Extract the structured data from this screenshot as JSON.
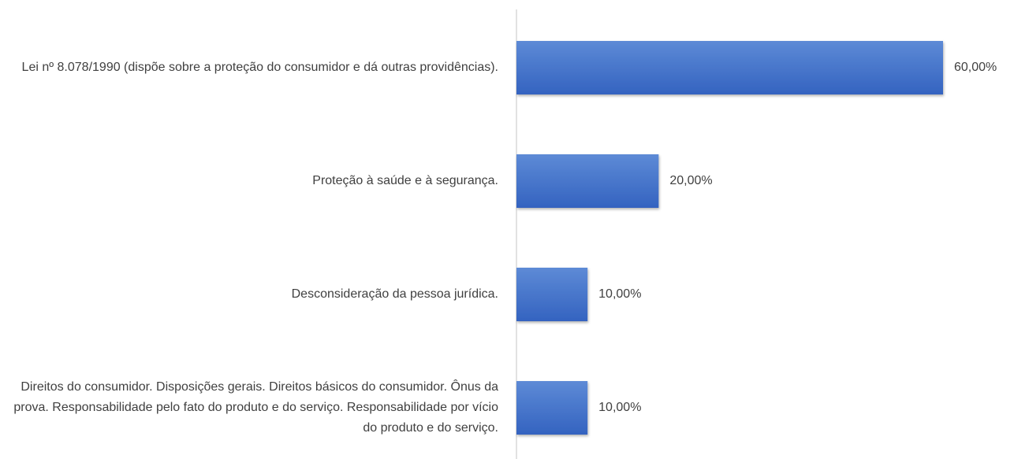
{
  "chart_data": {
    "type": "bar",
    "orientation": "horizontal",
    "categories": [
      "Lei nº 8.078/1990 (dispõe sobre a proteção do consumidor e dá outras providências).",
      "Proteção à saúde e à segurança.",
      "Desconsideração da pessoa jurídica.",
      "Direitos do consumidor. Disposições gerais. Direitos básicos do consumidor. Ônus da prova. Responsabilidade pelo fato do produto e do serviço. Responsabilidade por vício do produto e do serviço."
    ],
    "values": [
      60,
      20,
      10,
      10
    ],
    "value_labels": [
      "60,00%",
      "20,00%",
      "10,00%",
      "10,00%"
    ],
    "color": "#4472c4",
    "xlim": [
      0,
      60
    ]
  }
}
